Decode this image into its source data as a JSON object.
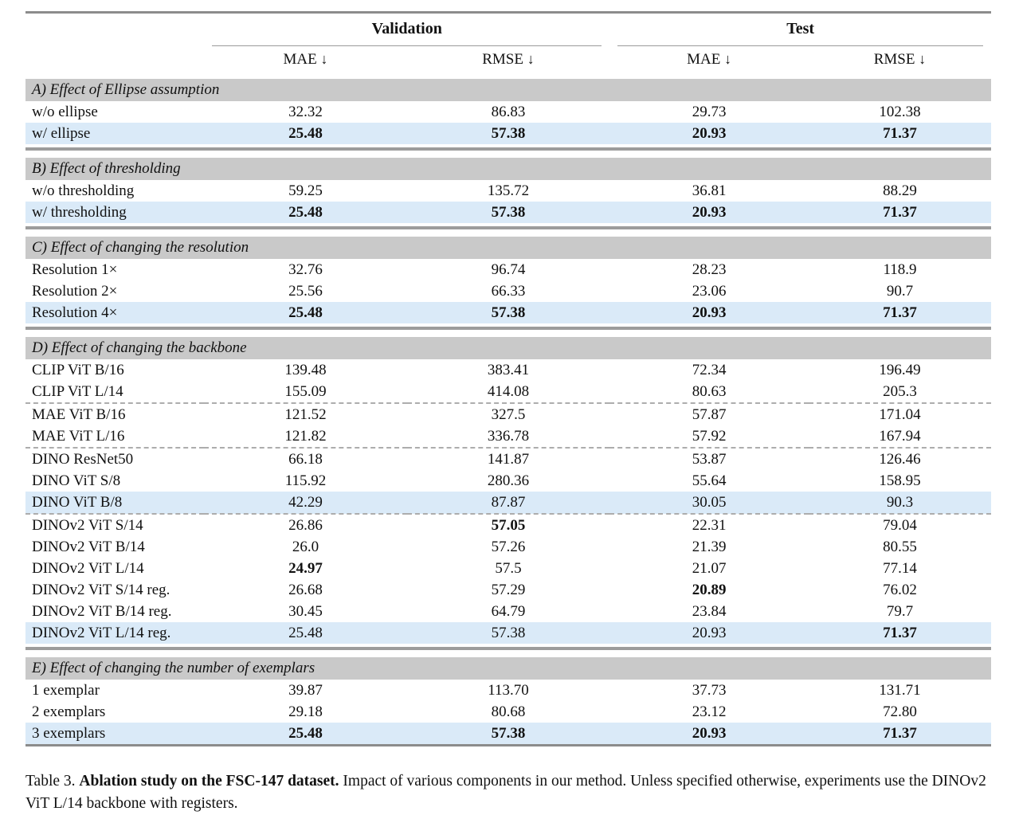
{
  "table": {
    "groups": [
      {
        "label": "Validation"
      },
      {
        "label": "Test"
      }
    ],
    "metric_headers": [
      {
        "name": "MAE",
        "arrow": "↓"
      },
      {
        "name": "RMSE",
        "arrow": "↓"
      },
      {
        "name": "MAE",
        "arrow": "↓"
      },
      {
        "name": "RMSE",
        "arrow": "↓"
      }
    ],
    "sections": [
      {
        "title": "A) Effect of Ellipse assumption",
        "rows": [
          {
            "label": "w/o ellipse",
            "values": [
              "32.32",
              "86.83",
              "29.73",
              "102.38"
            ],
            "bold": [
              false,
              false,
              false,
              false
            ],
            "highlight": false,
            "dashed_after": false
          },
          {
            "label": "w/ ellipse",
            "values": [
              "25.48",
              "57.38",
              "20.93",
              "71.37"
            ],
            "bold": [
              true,
              true,
              true,
              true
            ],
            "highlight": true,
            "dashed_after": false
          }
        ]
      },
      {
        "title": "B) Effect of thresholding",
        "rows": [
          {
            "label": "w/o thresholding",
            "values": [
              "59.25",
              "135.72",
              "36.81",
              "88.29"
            ],
            "bold": [
              false,
              false,
              false,
              false
            ],
            "highlight": false,
            "dashed_after": false
          },
          {
            "label": "w/ thresholding",
            "values": [
              "25.48",
              "57.38",
              "20.93",
              "71.37"
            ],
            "bold": [
              true,
              true,
              true,
              true
            ],
            "highlight": true,
            "dashed_after": false
          }
        ]
      },
      {
        "title": "C) Effect of changing the resolution",
        "rows": [
          {
            "label": "Resolution 1×",
            "values": [
              "32.76",
              "96.74",
              "28.23",
              "118.9"
            ],
            "bold": [
              false,
              false,
              false,
              false
            ],
            "highlight": false,
            "dashed_after": false
          },
          {
            "label": "Resolution 2×",
            "values": [
              "25.56",
              "66.33",
              "23.06",
              "90.7"
            ],
            "bold": [
              false,
              false,
              false,
              false
            ],
            "highlight": false,
            "dashed_after": false
          },
          {
            "label": "Resolution 4×",
            "values": [
              "25.48",
              "57.38",
              "20.93",
              "71.37"
            ],
            "bold": [
              true,
              true,
              true,
              true
            ],
            "highlight": true,
            "dashed_after": false
          }
        ]
      },
      {
        "title": "D) Effect of changing the backbone",
        "rows": [
          {
            "label": "CLIP ViT B/16",
            "values": [
              "139.48",
              "383.41",
              "72.34",
              "196.49"
            ],
            "bold": [
              false,
              false,
              false,
              false
            ],
            "highlight": false,
            "dashed_after": false
          },
          {
            "label": "CLIP ViT L/14",
            "values": [
              "155.09",
              "414.08",
              "80.63",
              "205.3"
            ],
            "bold": [
              false,
              false,
              false,
              false
            ],
            "highlight": false,
            "dashed_after": true
          },
          {
            "label": "MAE ViT B/16",
            "values": [
              "121.52",
              "327.5",
              "57.87",
              "171.04"
            ],
            "bold": [
              false,
              false,
              false,
              false
            ],
            "highlight": false,
            "dashed_after": false
          },
          {
            "label": "MAE ViT L/16",
            "values": [
              "121.82",
              "336.78",
              "57.92",
              "167.94"
            ],
            "bold": [
              false,
              false,
              false,
              false
            ],
            "highlight": false,
            "dashed_after": true
          },
          {
            "label": "DINO ResNet50",
            "values": [
              "66.18",
              "141.87",
              "53.87",
              "126.46"
            ],
            "bold": [
              false,
              false,
              false,
              false
            ],
            "highlight": false,
            "dashed_after": false
          },
          {
            "label": "DINO ViT S/8",
            "values": [
              "115.92",
              "280.36",
              "55.64",
              "158.95"
            ],
            "bold": [
              false,
              false,
              false,
              false
            ],
            "highlight": false,
            "dashed_after": false
          },
          {
            "label": "DINO ViT B/8",
            "values": [
              "42.29",
              "87.87",
              "30.05",
              "90.3"
            ],
            "bold": [
              false,
              false,
              false,
              false
            ],
            "highlight": true,
            "dashed_after": true
          },
          {
            "label": "DINOv2 ViT S/14",
            "values": [
              "26.86",
              "57.05",
              "22.31",
              "79.04"
            ],
            "bold": [
              false,
              true,
              false,
              false
            ],
            "highlight": false,
            "dashed_after": false
          },
          {
            "label": "DINOv2 ViT B/14",
            "values": [
              "26.0",
              "57.26",
              "21.39",
              "80.55"
            ],
            "bold": [
              false,
              false,
              false,
              false
            ],
            "highlight": false,
            "dashed_after": false
          },
          {
            "label": "DINOv2 ViT L/14",
            "values": [
              "24.97",
              "57.5",
              "21.07",
              "77.14"
            ],
            "bold": [
              true,
              false,
              false,
              false
            ],
            "highlight": false,
            "dashed_after": false
          },
          {
            "label": "DINOv2 ViT S/14 reg.",
            "values": [
              "26.68",
              "57.29",
              "20.89",
              "76.02"
            ],
            "bold": [
              false,
              false,
              true,
              false
            ],
            "highlight": false,
            "dashed_after": false
          },
          {
            "label": "DINOv2 ViT B/14 reg.",
            "values": [
              "30.45",
              "64.79",
              "23.84",
              "79.7"
            ],
            "bold": [
              false,
              false,
              false,
              false
            ],
            "highlight": false,
            "dashed_after": false
          },
          {
            "label": "DINOv2 ViT L/14 reg.",
            "values": [
              "25.48",
              "57.38",
              "20.93",
              "71.37"
            ],
            "bold": [
              false,
              false,
              false,
              true
            ],
            "highlight": true,
            "dashed_after": false
          }
        ]
      },
      {
        "title": "E) Effect of changing the number of exemplars",
        "rows": [
          {
            "label": "1 exemplar",
            "values": [
              "39.87",
              "113.70",
              "37.73",
              "131.71"
            ],
            "bold": [
              false,
              false,
              false,
              false
            ],
            "highlight": false,
            "dashed_after": false
          },
          {
            "label": "2 exemplars",
            "values": [
              "29.18",
              "80.68",
              "23.12",
              "72.80"
            ],
            "bold": [
              false,
              false,
              false,
              false
            ],
            "highlight": false,
            "dashed_after": false
          },
          {
            "label": "3 exemplars",
            "values": [
              "25.48",
              "57.38",
              "20.93",
              "71.37"
            ],
            "bold": [
              true,
              true,
              true,
              true
            ],
            "highlight": true,
            "dashed_after": false
          }
        ]
      }
    ]
  },
  "caption": {
    "prefix": "Table 3.",
    "bold": "Ablation study on the FSC-147 dataset.",
    "rest": "Impact of various components in our method. Unless specified otherwise, experiments use the DINOv2 ViT L/14 backbone with registers."
  },
  "colors": {
    "section_header_bg": "#c9c9c9",
    "highlight_bg": "#daeaf8",
    "rule": "#8c8c8c",
    "dashed_divider": "#adadad"
  }
}
